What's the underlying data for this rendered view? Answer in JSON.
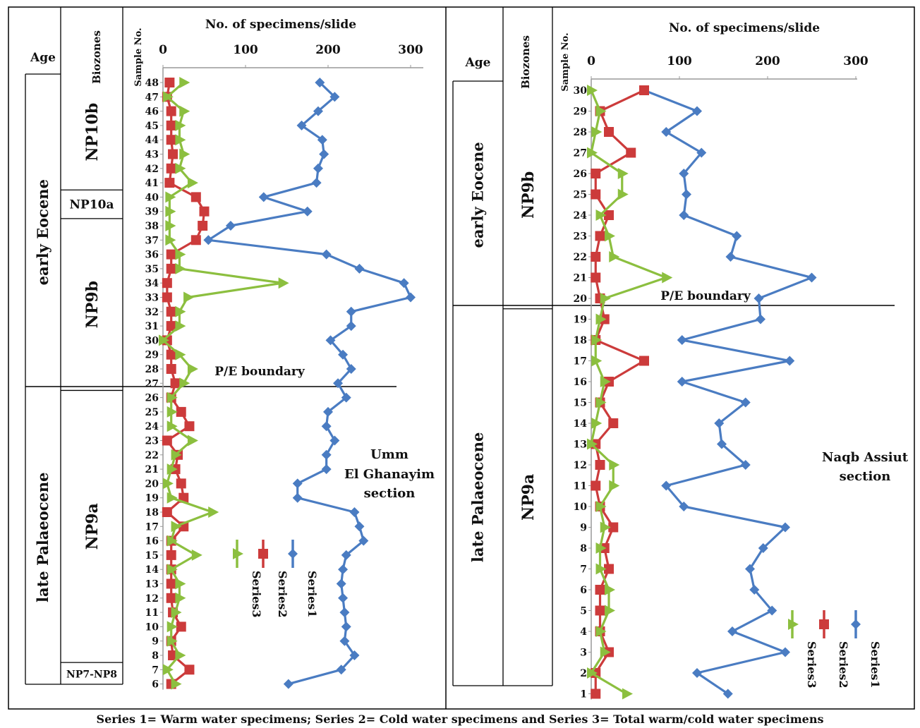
{
  "caption": "Series 1= Warm water specimens; Series 2= Cold water specimens and Series 3= Total warm/cold water specimens",
  "colors": {
    "series1": "#4a7cc2",
    "series2": "#cc3b3b",
    "series3": "#8cbf3f"
  },
  "chart_data": [
    {
      "type": "line",
      "section_label": [
        "Umm",
        "El Ghanayim",
        "section"
      ],
      "headers": {
        "age": "Age",
        "biozones": "Biozones",
        "sample": "Sample No."
      },
      "title": "No. of specimens/slide",
      "xlim": [
        0,
        300
      ],
      "x_ticks": [
        "0",
        "100",
        "200",
        "300"
      ],
      "boundary_label": "P/E boundary",
      "ages": [
        {
          "label": "early Eocene",
          "from": 27,
          "to": 48
        },
        {
          "label": "late Palaeocene",
          "from": 6,
          "to": 26
        }
      ],
      "zones": [
        {
          "label": "NP10b",
          "from": 41,
          "to": 48
        },
        {
          "label": "NP10a",
          "from": 39,
          "to": 40
        },
        {
          "label": "NP9b",
          "from": 27,
          "to": 38
        },
        {
          "label": "NP9a",
          "from": 8,
          "to": 26
        },
        {
          "label": "NP7-NP8",
          "from": 6,
          "to": 7
        }
      ],
      "samples": [
        48,
        47,
        46,
        45,
        44,
        43,
        42,
        41,
        40,
        39,
        38,
        37,
        36,
        35,
        34,
        33,
        32,
        31,
        30,
        29,
        28,
        27,
        26,
        25,
        24,
        23,
        22,
        21,
        20,
        19,
        18,
        17,
        16,
        15,
        14,
        13,
        12,
        11,
        10,
        9,
        8,
        7,
        6
      ],
      "series": [
        {
          "name": "Series1",
          "values": [
            190,
            208,
            188,
            168,
            193,
            195,
            188,
            186,
            122,
            175,
            82,
            55,
            198,
            238,
            292,
            300,
            228,
            228,
            203,
            218,
            228,
            212,
            222,
            200,
            198,
            208,
            198,
            198,
            163,
            163,
            232,
            238,
            243,
            222,
            218,
            216,
            218,
            220,
            222,
            220,
            232,
            216,
            152
          ]
        },
        {
          "name": "Series2",
          "values": [
            8,
            5,
            10,
            10,
            10,
            12,
            10,
            8,
            40,
            50,
            48,
            40,
            10,
            10,
            5,
            5,
            10,
            10,
            5,
            10,
            10,
            15,
            10,
            22,
            32,
            5,
            18,
            15,
            22,
            25,
            5,
            25,
            10,
            10,
            10,
            10,
            10,
            12,
            22,
            10,
            12,
            32,
            10
          ]
        },
        {
          "name": "Series3",
          "values": [
            25,
            5,
            25,
            20,
            20,
            25,
            20,
            35,
            8,
            8,
            8,
            8,
            20,
            20,
            145,
            30,
            20,
            20,
            0,
            20,
            35,
            25,
            10,
            10,
            10,
            35,
            15,
            10,
            5,
            10,
            60,
            15,
            10,
            40,
            10,
            20,
            20,
            15,
            10,
            10,
            20,
            5,
            15
          ]
        }
      ],
      "legend": [
        "Series3",
        "Series2",
        "Series1"
      ]
    },
    {
      "type": "line",
      "section_label": [
        "Naqb Assiut",
        "section"
      ],
      "headers": {
        "age": "Age",
        "biozones": "Biozones",
        "sample": "Sample No."
      },
      "title": "No. of specimens/slide",
      "xlim": [
        0,
        300
      ],
      "x_ticks": [
        "0",
        "100",
        "200",
        "300"
      ],
      "boundary_label": "P/E boundary",
      "ages": [
        {
          "label": "early Eocene",
          "from": 20,
          "to": 30
        },
        {
          "label": "late Palaeocene",
          "from": 1,
          "to": 19
        }
      ],
      "zones": [
        {
          "label": "NP9b",
          "from": 20,
          "to": 30
        },
        {
          "label": "NP9a",
          "from": 1,
          "to": 19
        }
      ],
      "samples": [
        30,
        29,
        28,
        27,
        26,
        25,
        24,
        23,
        22,
        21,
        20,
        19,
        18,
        17,
        16,
        15,
        14,
        13,
        12,
        11,
        10,
        9,
        8,
        7,
        6,
        5,
        4,
        3,
        2,
        1
      ],
      "series": [
        {
          "name": "Series1",
          "values": [
            60,
            120,
            85,
            125,
            105,
            108,
            105,
            165,
            158,
            250,
            190,
            192,
            103,
            225,
            103,
            175,
            145,
            148,
            175,
            85,
            105,
            220,
            195,
            180,
            185,
            205,
            160,
            220,
            120,
            155
          ]
        },
        {
          "name": "Series2",
          "values": [
            60,
            10,
            20,
            45,
            5,
            5,
            20,
            10,
            5,
            5,
            10,
            15,
            5,
            60,
            20,
            10,
            25,
            5,
            10,
            5,
            10,
            25,
            15,
            20,
            10,
            10,
            10,
            20,
            5,
            5
          ]
        },
        {
          "name": "Series3",
          "values": [
            0,
            10,
            5,
            0,
            35,
            35,
            10,
            20,
            25,
            85,
            15,
            10,
            5,
            5,
            15,
            10,
            5,
            0,
            25,
            25,
            10,
            15,
            10,
            10,
            20,
            20,
            10,
            15,
            0,
            40
          ]
        }
      ],
      "legend": [
        "Series3",
        "Series2",
        "Series1"
      ]
    }
  ]
}
